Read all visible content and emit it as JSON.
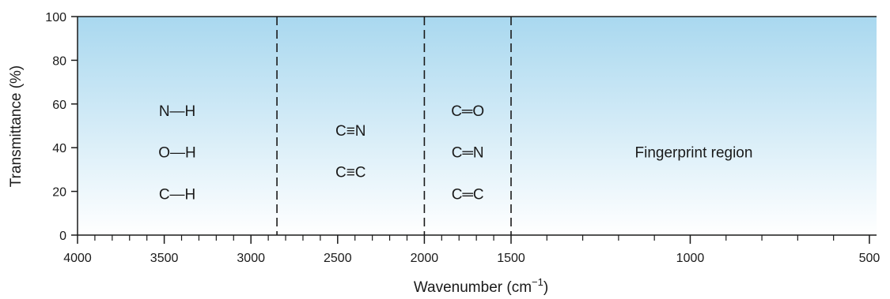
{
  "chart_data": {
    "type": "area",
    "xlabel": "Wavenumber (cm",
    "xlabel_sup": "−1",
    "xlabel_close": ")",
    "ylabel": "Transmittance (%)",
    "xlim": [
      4000,
      480
    ],
    "ylim": [
      0,
      100
    ],
    "x_break": 1500,
    "y_ticks": [
      0,
      20,
      40,
      60,
      80,
      100
    ],
    "x_tick_labels": [
      4000,
      3500,
      3000,
      2500,
      2000,
      1500,
      1000,
      500
    ],
    "x_minor_ticks_left": [
      3900,
      3800,
      3700,
      3600,
      3400,
      3300,
      3200,
      3100,
      2900,
      2800,
      2700,
      2600,
      2400,
      2300,
      2200,
      2100,
      1900,
      1800,
      1700,
      1600
    ],
    "x_minor_ticks_right": [
      1400,
      1300,
      1200,
      1100,
      900,
      800,
      700,
      600
    ],
    "grid": false,
    "fill_gradient": {
      "top": "#a9d8ef",
      "bottom": "#ffffff"
    },
    "boundaries": [
      2850,
      2000,
      1500
    ],
    "regions": [
      {
        "x_range": [
          4000,
          2850
        ],
        "labels": [
          "N—H",
          "O—H",
          "C—H"
        ],
        "label_y": [
          57,
          38,
          19
        ]
      },
      {
        "x_range": [
          2850,
          2000
        ],
        "labels": [
          "C≡N",
          "C≡C"
        ],
        "label_y": [
          48,
          29
        ]
      },
      {
        "x_range": [
          2000,
          1500
        ],
        "labels": [
          "C═O",
          "C═N",
          "C═C"
        ],
        "label_y": [
          57,
          38,
          19
        ]
      },
      {
        "x_range": [
          1500,
          480
        ],
        "labels": [
          "Fingerprint region"
        ],
        "label_y": [
          38
        ]
      }
    ]
  }
}
